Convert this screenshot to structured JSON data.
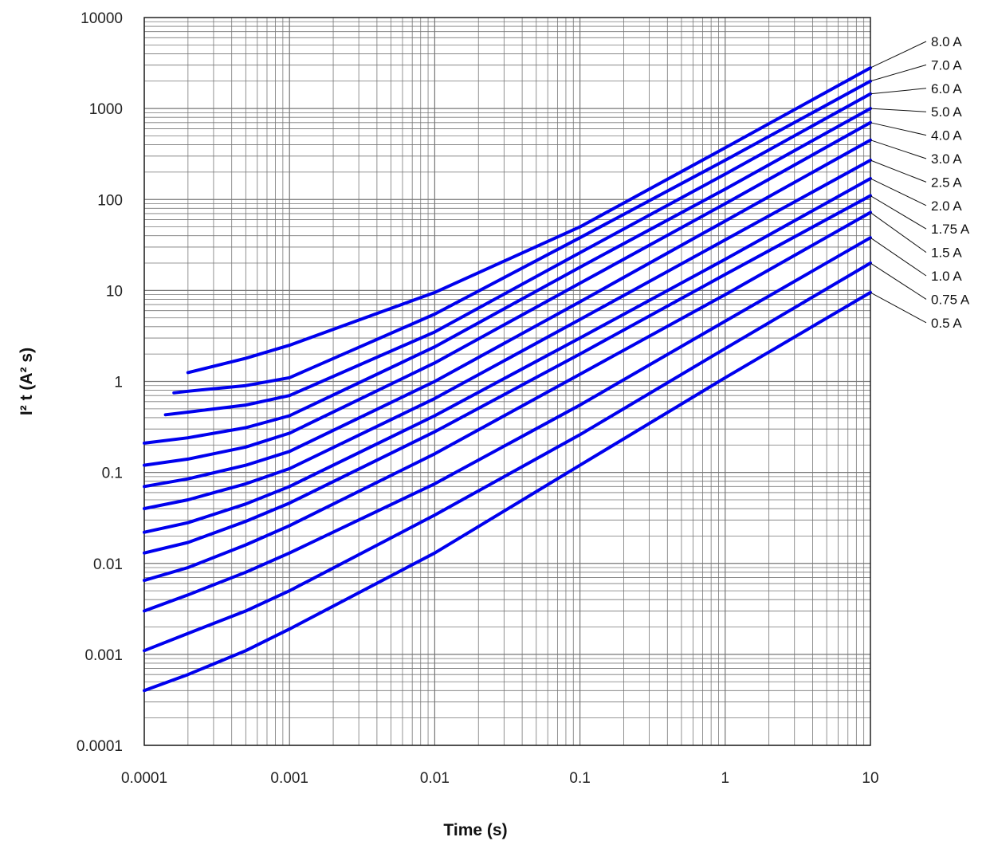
{
  "chart_data": {
    "type": "line",
    "title": "",
    "xlabel": "Time (s)",
    "ylabel": "I² t (A² s)",
    "x_scale": "log",
    "y_scale": "log",
    "xlim": [
      0.0001,
      10
    ],
    "ylim": [
      0.0001,
      10000
    ],
    "grid": true,
    "legend": "right",
    "x_ticks": [
      "0.0001",
      "0.001",
      "0.01",
      "0.1",
      "1",
      "10"
    ],
    "y_ticks": [
      "0.0001",
      "0.001",
      "0.01",
      "0.1",
      "1",
      "10",
      "100",
      "1000",
      "10000"
    ],
    "colors": {
      "series": "#0000ee",
      "grid": "#777777",
      "axis": "#222222"
    },
    "series": [
      {
        "name": "0.5 A",
        "x": [
          0.0001,
          0.0002,
          0.0005,
          0.001,
          0.01,
          0.1,
          1,
          10
        ],
        "y": [
          0.0004,
          0.0006,
          0.0011,
          0.0019,
          0.013,
          0.12,
          1.1,
          9.5
        ]
      },
      {
        "name": "0.75 A",
        "x": [
          0.0001,
          0.0002,
          0.0005,
          0.001,
          0.01,
          0.1,
          1,
          10
        ],
        "y": [
          0.0011,
          0.0017,
          0.003,
          0.005,
          0.034,
          0.26,
          2.3,
          20
        ]
      },
      {
        "name": "1.0 A",
        "x": [
          0.0001,
          0.0002,
          0.0005,
          0.001,
          0.01,
          0.1,
          1,
          10
        ],
        "y": [
          0.003,
          0.0045,
          0.008,
          0.013,
          0.075,
          0.55,
          4.6,
          38
        ]
      },
      {
        "name": "1.5 A",
        "x": [
          0.0001,
          0.0002,
          0.0005,
          0.001,
          0.01,
          0.1,
          1,
          10
        ],
        "y": [
          0.0065,
          0.009,
          0.016,
          0.026,
          0.16,
          1.2,
          9,
          72
        ]
      },
      {
        "name": "1.75 A",
        "x": [
          0.0001,
          0.0002,
          0.0005,
          0.001,
          0.01,
          0.1,
          1,
          10
        ],
        "y": [
          0.013,
          0.017,
          0.029,
          0.046,
          0.28,
          2,
          15,
          110
        ]
      },
      {
        "name": "2.0 A",
        "x": [
          0.0001,
          0.0002,
          0.0005,
          0.001,
          0.01,
          0.1,
          1,
          10
        ],
        "y": [
          0.022,
          0.028,
          0.045,
          0.07,
          0.42,
          3,
          22,
          170
        ]
      },
      {
        "name": "2.5 A",
        "x": [
          0.0001,
          0.0002,
          0.0005,
          0.001,
          0.01,
          0.1,
          1,
          10
        ],
        "y": [
          0.04,
          0.05,
          0.075,
          0.11,
          0.65,
          4.8,
          36,
          270
        ]
      },
      {
        "name": "3.0 A",
        "x": [
          0.0001,
          0.0002,
          0.0005,
          0.001,
          0.01,
          0.1,
          1,
          10
        ],
        "y": [
          0.07,
          0.085,
          0.12,
          0.17,
          1,
          7.5,
          58,
          450
        ]
      },
      {
        "name": "4.0 A",
        "x": [
          0.0001,
          0.0002,
          0.0005,
          0.001,
          0.01,
          0.1,
          1,
          10
        ],
        "y": [
          0.12,
          0.14,
          0.19,
          0.27,
          1.6,
          12,
          90,
          700
        ]
      },
      {
        "name": "5.0 A",
        "x": [
          0.0001,
          0.0002,
          0.0005,
          0.001,
          0.01,
          0.1,
          1,
          10
        ],
        "y": [
          0.21,
          0.24,
          0.31,
          0.42,
          2.4,
          18,
          130,
          1000
        ]
      },
      {
        "name": "6.0 A",
        "x": [
          0.00014,
          0.0002,
          0.0005,
          0.001,
          0.01,
          0.1,
          1,
          10
        ],
        "y": [
          0.43,
          0.46,
          0.55,
          0.7,
          3.5,
          26,
          190,
          1450
        ]
      },
      {
        "name": "7.0 A",
        "x": [
          0.00016,
          0.0002,
          0.0005,
          0.001,
          0.01,
          0.1,
          1,
          10
        ],
        "y": [
          0.75,
          0.78,
          0.9,
          1.1,
          5.5,
          38,
          270,
          2000
        ]
      },
      {
        "name": "8.0 A",
        "x": [
          0.0002,
          0.0005,
          0.001,
          0.01,
          0.1,
          1,
          10
        ],
        "y": [
          1.25,
          1.8,
          2.5,
          9.5,
          50,
          370,
          2800
        ]
      }
    ]
  }
}
